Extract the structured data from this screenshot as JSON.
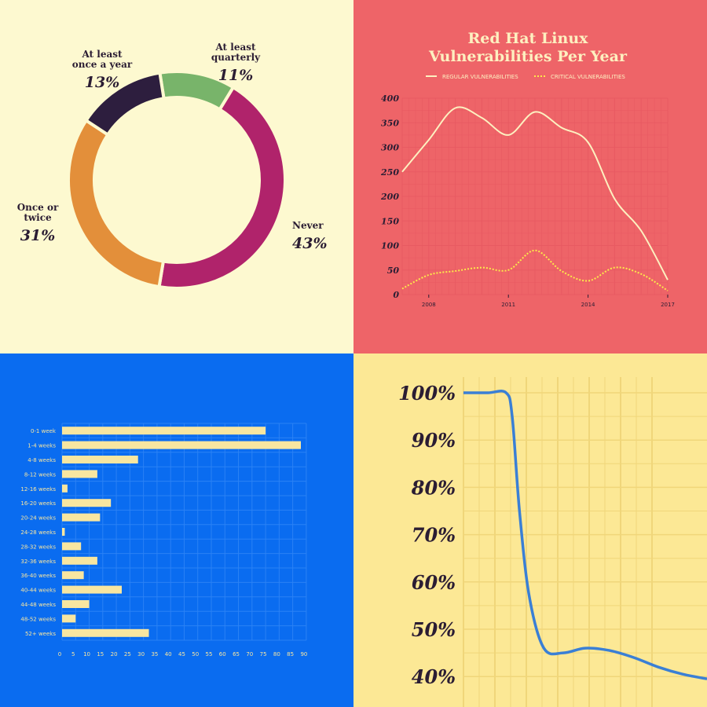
{
  "colors": {
    "q1_bg": "#fdf9d0",
    "q2_bg": "#ee6468",
    "q3_bg": "#0a6cf0",
    "q4_bg": "#fce895",
    "dark_text": "#2b1d33",
    "cream": "#fdf0c0",
    "critical": "#fde94a",
    "bar": "#f8e6a0",
    "q4_line": "#3a7fd5",
    "q4_grid": "#f0d67a"
  },
  "chart_data": [
    {
      "type": "pie",
      "donut": true,
      "slices": [
        {
          "label_lines": [
            "At least",
            "quarterly"
          ],
          "pct_label": "11%",
          "value": 11,
          "color": "#78b46a"
        },
        {
          "label_lines": [
            "Never"
          ],
          "pct_label": "43%",
          "value": 43,
          "color": "#b0236b"
        },
        {
          "label_lines": [
            "Once or",
            "twice"
          ],
          "pct_label": "31%",
          "value": 31,
          "color": "#e38f3a"
        },
        {
          "label_lines": [
            "At least",
            "once a year"
          ],
          "pct_label": "13%",
          "value": 13,
          "color": "#2d1e3e"
        }
      ]
    },
    {
      "type": "line",
      "title_lines": [
        "Red Hat Linux",
        "Vulnerabilities Per Year"
      ],
      "legend": [
        "REGULAR VULNERABILITIES",
        "CRITICAL VULNERABILITIES"
      ],
      "x_ticks": [
        "2008",
        "2011",
        "2014",
        "2017"
      ],
      "y_ticks": [
        "400",
        "350",
        "300",
        "250",
        "200",
        "150",
        "100",
        "50",
        "0"
      ],
      "ylim": [
        0,
        400
      ],
      "xlim": [
        2007,
        2017
      ],
      "series": [
        {
          "name": "REGULAR VULNERABILITIES",
          "x": [
            2007,
            2008,
            2009,
            2010,
            2011,
            2012,
            2013,
            2014,
            2015,
            2016,
            2017
          ],
          "y": [
            250,
            315,
            380,
            360,
            325,
            372,
            340,
            310,
            195,
            130,
            30
          ]
        },
        {
          "name": "CRITICAL VULNERABILITIES",
          "x": [
            2007,
            2008,
            2009,
            2010,
            2011,
            2012,
            2013,
            2014,
            2015,
            2016,
            2017
          ],
          "y": [
            12,
            40,
            48,
            55,
            50,
            90,
            48,
            28,
            55,
            42,
            8
          ]
        }
      ]
    },
    {
      "type": "bar",
      "orientation": "horizontal",
      "categories": [
        "0-1 week",
        "1-4 weeks",
        "4-8 weeks",
        "8-12 weeks",
        "12-16 weeks",
        "16-20 weeks",
        "20-24 weeks",
        "24-28 weeks",
        "28-32 weeks",
        "32-36 weeks",
        "36-40 weeks",
        "40-44 weeks",
        "44-48 weeks",
        "48-52 weeks",
        "52+ weeks"
      ],
      "values": [
        75,
        88,
        28,
        13,
        2,
        18,
        14,
        1,
        7,
        13,
        8,
        22,
        10,
        5,
        32
      ],
      "x_ticks": [
        "0",
        "5",
        "10",
        "15",
        "20",
        "25",
        "30",
        "35",
        "40",
        "45",
        "50",
        "55",
        "60",
        "65",
        "70",
        "75",
        "80",
        "85",
        "90"
      ],
      "xlim": [
        0,
        90
      ]
    },
    {
      "type": "line",
      "y_ticks": [
        "100%",
        "90%",
        "80%",
        "70%",
        "60%",
        "50%",
        "40%"
      ],
      "ylim": [
        38,
        102
      ],
      "series": [
        {
          "x": [
            0,
            10,
            17.5,
            20,
            23,
            27,
            33,
            41,
            50,
            60,
            70,
            80,
            90,
            100
          ],
          "y": [
            100,
            100,
            100,
            95,
            75,
            57,
            46,
            45,
            46,
            45.5,
            44,
            42,
            40.5,
            39.5
          ]
        }
      ]
    }
  ]
}
